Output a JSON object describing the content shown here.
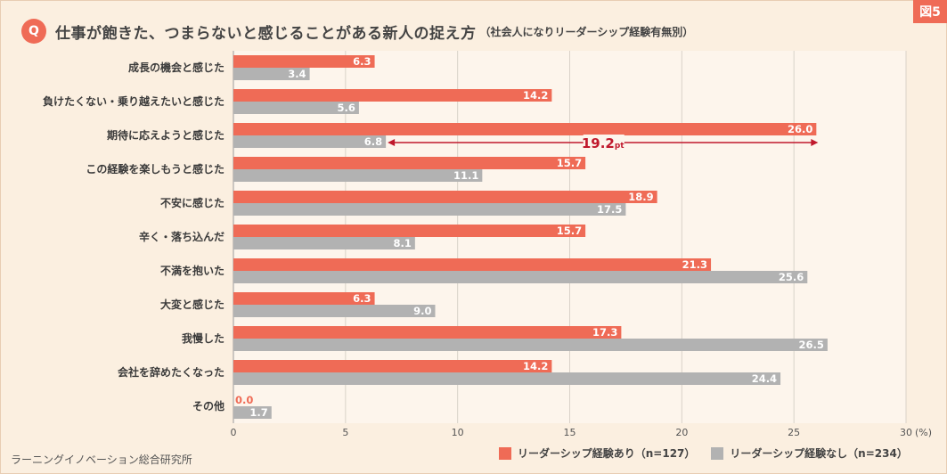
{
  "figure_tag": "図5",
  "header": {
    "badge": "Q",
    "title": "仕事が飽きた、つまらないと感じることがある新人の捉え方",
    "subtitle": "（社会人になりリーダーシップ経験有無別）"
  },
  "source": "ラーニングイノベーション総合研究所",
  "colors": {
    "accent": "#ef6b56",
    "gray": "#b2b2b2",
    "background": "#fbefe0",
    "annotation": "#c0182c"
  },
  "chart_data": {
    "type": "bar",
    "orientation": "horizontal",
    "categories": [
      "成長の機会と感じた",
      "負けたくない・乗り越えたいと感じた",
      "期待に応えようと感じた",
      "この経験を楽しもうと感じた",
      "不安に感じた",
      "辛く・落ち込んだ",
      "不満を抱いた",
      "大変と感じた",
      "我慢した",
      "会社を辞めたくなった",
      "その他"
    ],
    "series": [
      {
        "name": "リーダーシップ経験あり（n=127）",
        "color": "#ef6b56",
        "values": [
          6.3,
          14.2,
          26.0,
          15.7,
          18.9,
          15.7,
          21.3,
          6.3,
          17.3,
          14.2,
          0.0
        ],
        "labels": [
          "6.3",
          "14.2",
          "26.0",
          "15.7",
          "18.9",
          "15.7",
          "21.3",
          "6.3",
          "17.3",
          "14.2",
          "0.0"
        ]
      },
      {
        "name": "リーダーシップ経験なし（n=234）",
        "color": "#b2b2b2",
        "values": [
          3.4,
          5.6,
          6.8,
          11.1,
          17.5,
          8.1,
          25.6,
          9.0,
          26.5,
          24.4,
          1.7
        ],
        "labels": [
          "3.4",
          "5.6",
          "6.8",
          "11.1",
          "17.5",
          "8.1",
          "25.6",
          "9.0",
          "26.5",
          "24.4",
          "1.7"
        ]
      }
    ],
    "xlim": [
      0,
      30
    ],
    "xticks": [
      0,
      5,
      10,
      15,
      20,
      25,
      30
    ],
    "xtick_labels": [
      "0",
      "5",
      "10",
      "15",
      "20",
      "25",
      "30"
    ],
    "xunit": "(%)",
    "grid": true,
    "legend_position": "bottom-right",
    "annotation": {
      "category_index": 2,
      "from": 6.8,
      "to": 26.0,
      "value": "19.2",
      "unit": "pt"
    }
  }
}
